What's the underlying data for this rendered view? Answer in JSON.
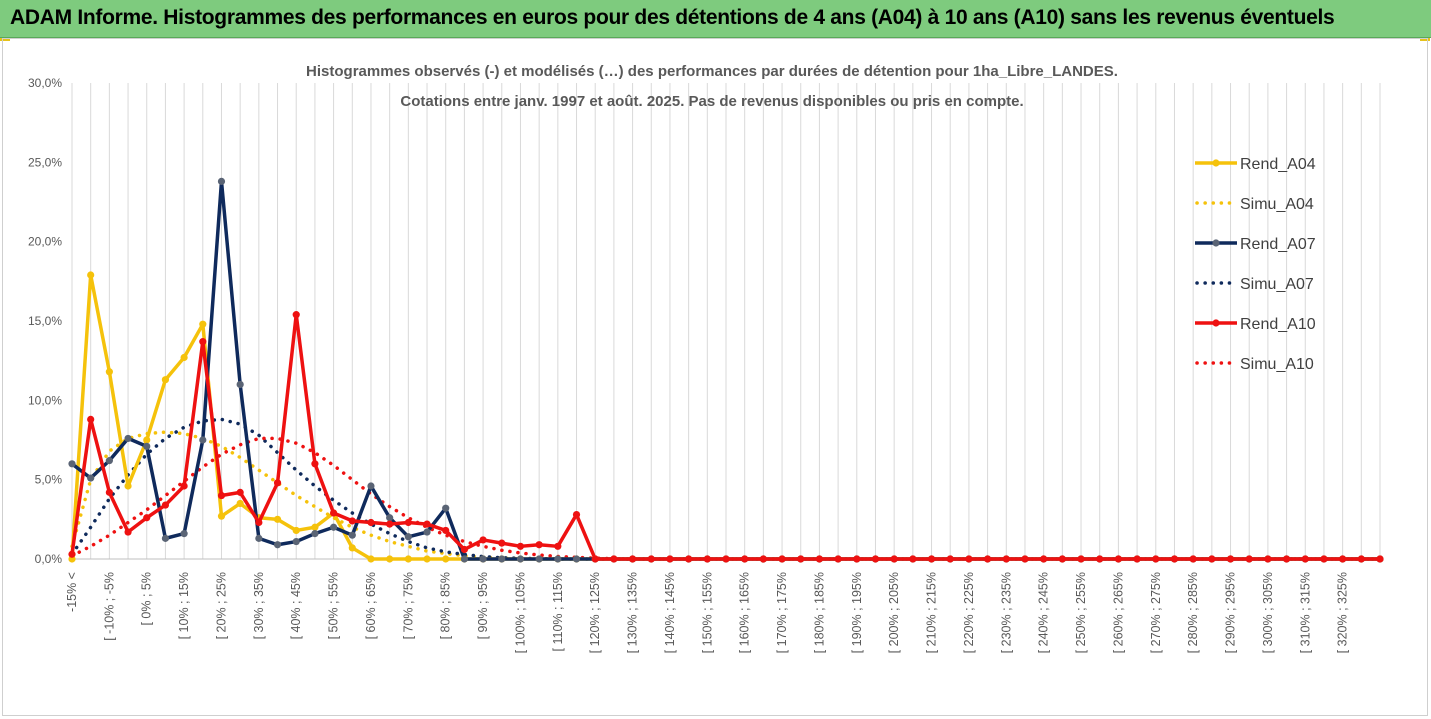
{
  "header": {
    "title": "ADAM Informe. Histogrammes des performances en euros pour des détentions de 4 ans (A04) à 10 ans (A10) sans les revenus éventuels"
  },
  "colors": {
    "banner": "#7ecb7e",
    "A04": "#f5c20b",
    "A07": "#0f2a5c",
    "A07_marker": "#5a6475",
    "A10": "#ee1111",
    "grid": "#d9d9d9"
  },
  "chart_data": {
    "type": "line",
    "title_lines": [
      "Histogrammes observés (-) et modélisés (…) des performances par durées de détention pour 1ha_Libre_LANDES.",
      "Cotations entre janv. 1997 et août. 2025. Pas de revenus disponibles ou pris en compte."
    ],
    "ylim": [
      0,
      30
    ],
    "y_ticks": [
      "0,0%",
      "5,0%",
      "10,0%",
      "15,0%",
      "20,0%",
      "25,0%",
      "30,0%"
    ],
    "x_tick_labels": [
      "-15% <",
      "[ -10% ; -5%",
      "[ 0% ; 5%",
      "[ 10% ; 15%",
      "[ 20% ; 25%",
      "[ 30% ; 35%",
      "[ 40% ; 45%",
      "[ 50% ; 55%",
      "[ 60% ; 65%",
      "[ 70% ; 75%",
      "[ 80% ; 85%",
      "[ 90% ; 95%",
      "[ 100% ; 105%",
      "[ 110% ; 115%",
      "[ 120% ; 125%",
      "[ 130% ; 135%",
      "[ 140% ; 145%",
      "[ 150% ; 155%",
      "[ 160% ; 165%",
      "[ 170% ; 175%",
      "[ 180% ; 185%",
      "[ 190% ; 195%",
      "[ 200% ; 205%",
      "[ 210% ; 215%",
      "[ 220% ; 225%",
      "[ 230% ; 235%",
      "[ 240% ; 245%",
      "[ 250% ; 255%",
      "[ 260% ; 265%",
      "[ 270% ; 275%",
      "[ 280% ; 285%",
      "[ 290% ; 295%",
      "[ 300% ; 305%",
      "[ 310% ; 315%",
      "[ 320% ; 325%"
    ],
    "legend_position": "right",
    "grid": "vertical",
    "series": [
      {
        "name": "Rend_A04",
        "style": "solid",
        "color": "#f5c20b",
        "values": [
          0,
          17.9,
          11.8,
          4.6,
          7.5,
          11.3,
          12.7,
          14.8,
          2.7,
          3.5,
          2.6,
          2.5,
          1.8,
          2.0,
          2.9,
          0.7,
          0,
          0,
          0,
          0,
          0,
          0,
          0,
          0,
          0,
          0,
          0,
          0,
          0,
          0,
          0,
          0,
          0,
          0,
          0,
          0,
          0,
          0,
          0,
          0,
          0,
          0,
          0,
          0,
          0,
          0,
          0,
          0,
          0,
          0,
          0,
          0,
          0,
          0,
          0,
          0,
          0,
          0,
          0,
          0,
          0,
          0,
          0,
          0,
          0,
          0,
          0,
          0,
          0,
          0,
          0
        ]
      },
      {
        "name": "Simu_A04",
        "style": "dotted",
        "color": "#f5c20b",
        "values": [
          0.8,
          5.0,
          6.8,
          7.6,
          7.9,
          8.0,
          7.9,
          7.6,
          7.1,
          6.4,
          5.6,
          4.8,
          4.0,
          3.3,
          2.6,
          2.0,
          1.5,
          1.1,
          0.8,
          0.5,
          0.35,
          0.2,
          0.12,
          0.06,
          0.03,
          0.01,
          0,
          0,
          0,
          0,
          0,
          0,
          0,
          0,
          0,
          0,
          0,
          0,
          0,
          0,
          0,
          0,
          0,
          0,
          0,
          0,
          0,
          0,
          0,
          0,
          0,
          0,
          0,
          0,
          0,
          0,
          0,
          0,
          0,
          0,
          0,
          0,
          0,
          0,
          0,
          0,
          0,
          0,
          0,
          0,
          0
        ]
      },
      {
        "name": "Rend_A07",
        "style": "solid",
        "color": "#0f2a5c",
        "values": [
          6.0,
          5.1,
          6.2,
          7.6,
          7.1,
          1.3,
          1.6,
          7.5,
          23.8,
          11.0,
          1.3,
          0.9,
          1.1,
          1.6,
          2.0,
          1.5,
          4.6,
          2.6,
          1.4,
          1.7,
          3.2,
          0,
          0,
          0,
          0,
          0,
          0,
          0,
          0,
          0,
          0,
          0,
          0,
          0,
          0,
          0,
          0,
          0,
          0,
          0,
          0,
          0,
          0,
          0,
          0,
          0,
          0,
          0,
          0,
          0,
          0,
          0,
          0,
          0,
          0,
          0,
          0,
          0,
          0,
          0,
          0,
          0,
          0,
          0,
          0,
          0,
          0,
          0,
          0,
          0,
          0
        ]
      },
      {
        "name": "Simu_A07",
        "style": "dotted",
        "color": "#0f2a5c",
        "values": [
          0.3,
          2.0,
          3.8,
          5.3,
          6.6,
          7.6,
          8.3,
          8.7,
          8.8,
          8.5,
          7.8,
          6.7,
          5.6,
          4.6,
          3.7,
          2.9,
          2.2,
          1.6,
          1.1,
          0.7,
          0.45,
          0.28,
          0.15,
          0.08,
          0.04,
          0.02,
          0,
          0,
          0,
          0,
          0,
          0,
          0,
          0,
          0,
          0,
          0,
          0,
          0,
          0,
          0,
          0,
          0,
          0,
          0,
          0,
          0,
          0,
          0,
          0,
          0,
          0,
          0,
          0,
          0,
          0,
          0,
          0,
          0,
          0,
          0,
          0,
          0,
          0,
          0,
          0,
          0,
          0,
          0,
          0,
          0
        ]
      },
      {
        "name": "Rend_A10",
        "style": "solid",
        "color": "#ee1111",
        "values": [
          0.3,
          8.8,
          4.2,
          1.7,
          2.6,
          3.4,
          4.6,
          13.7,
          4.0,
          4.2,
          2.3,
          4.8,
          15.4,
          6.0,
          2.9,
          2.4,
          2.3,
          2.2,
          2.3,
          2.2,
          1.8,
          0.6,
          1.2,
          1.0,
          0.8,
          0.9,
          0.8,
          2.8,
          0,
          0,
          0,
          0,
          0,
          0,
          0,
          0,
          0,
          0,
          0,
          0,
          0,
          0,
          0,
          0,
          0,
          0,
          0,
          0,
          0,
          0,
          0,
          0,
          0,
          0,
          0,
          0,
          0,
          0,
          0,
          0,
          0,
          0,
          0,
          0,
          0,
          0,
          0,
          0,
          0,
          0,
          0
        ]
      },
      {
        "name": "Simu_A10",
        "style": "dotted",
        "color": "#ee1111",
        "values": [
          0.2,
          0.8,
          1.5,
          2.3,
          3.1,
          4.0,
          4.9,
          5.8,
          6.6,
          7.2,
          7.6,
          7.6,
          7.3,
          6.7,
          5.9,
          5.0,
          4.1,
          3.3,
          2.6,
          2.0,
          1.5,
          1.1,
          0.8,
          0.55,
          0.38,
          0.25,
          0.16,
          0.1,
          0.05,
          0.02,
          0,
          0,
          0,
          0,
          0,
          0,
          0,
          0,
          0,
          0,
          0,
          0,
          0,
          0,
          0,
          0,
          0,
          0,
          0,
          0,
          0,
          0,
          0,
          0,
          0,
          0,
          0,
          0,
          0,
          0,
          0,
          0,
          0,
          0,
          0,
          0,
          0,
          0,
          0,
          0,
          0
        ]
      }
    ]
  }
}
